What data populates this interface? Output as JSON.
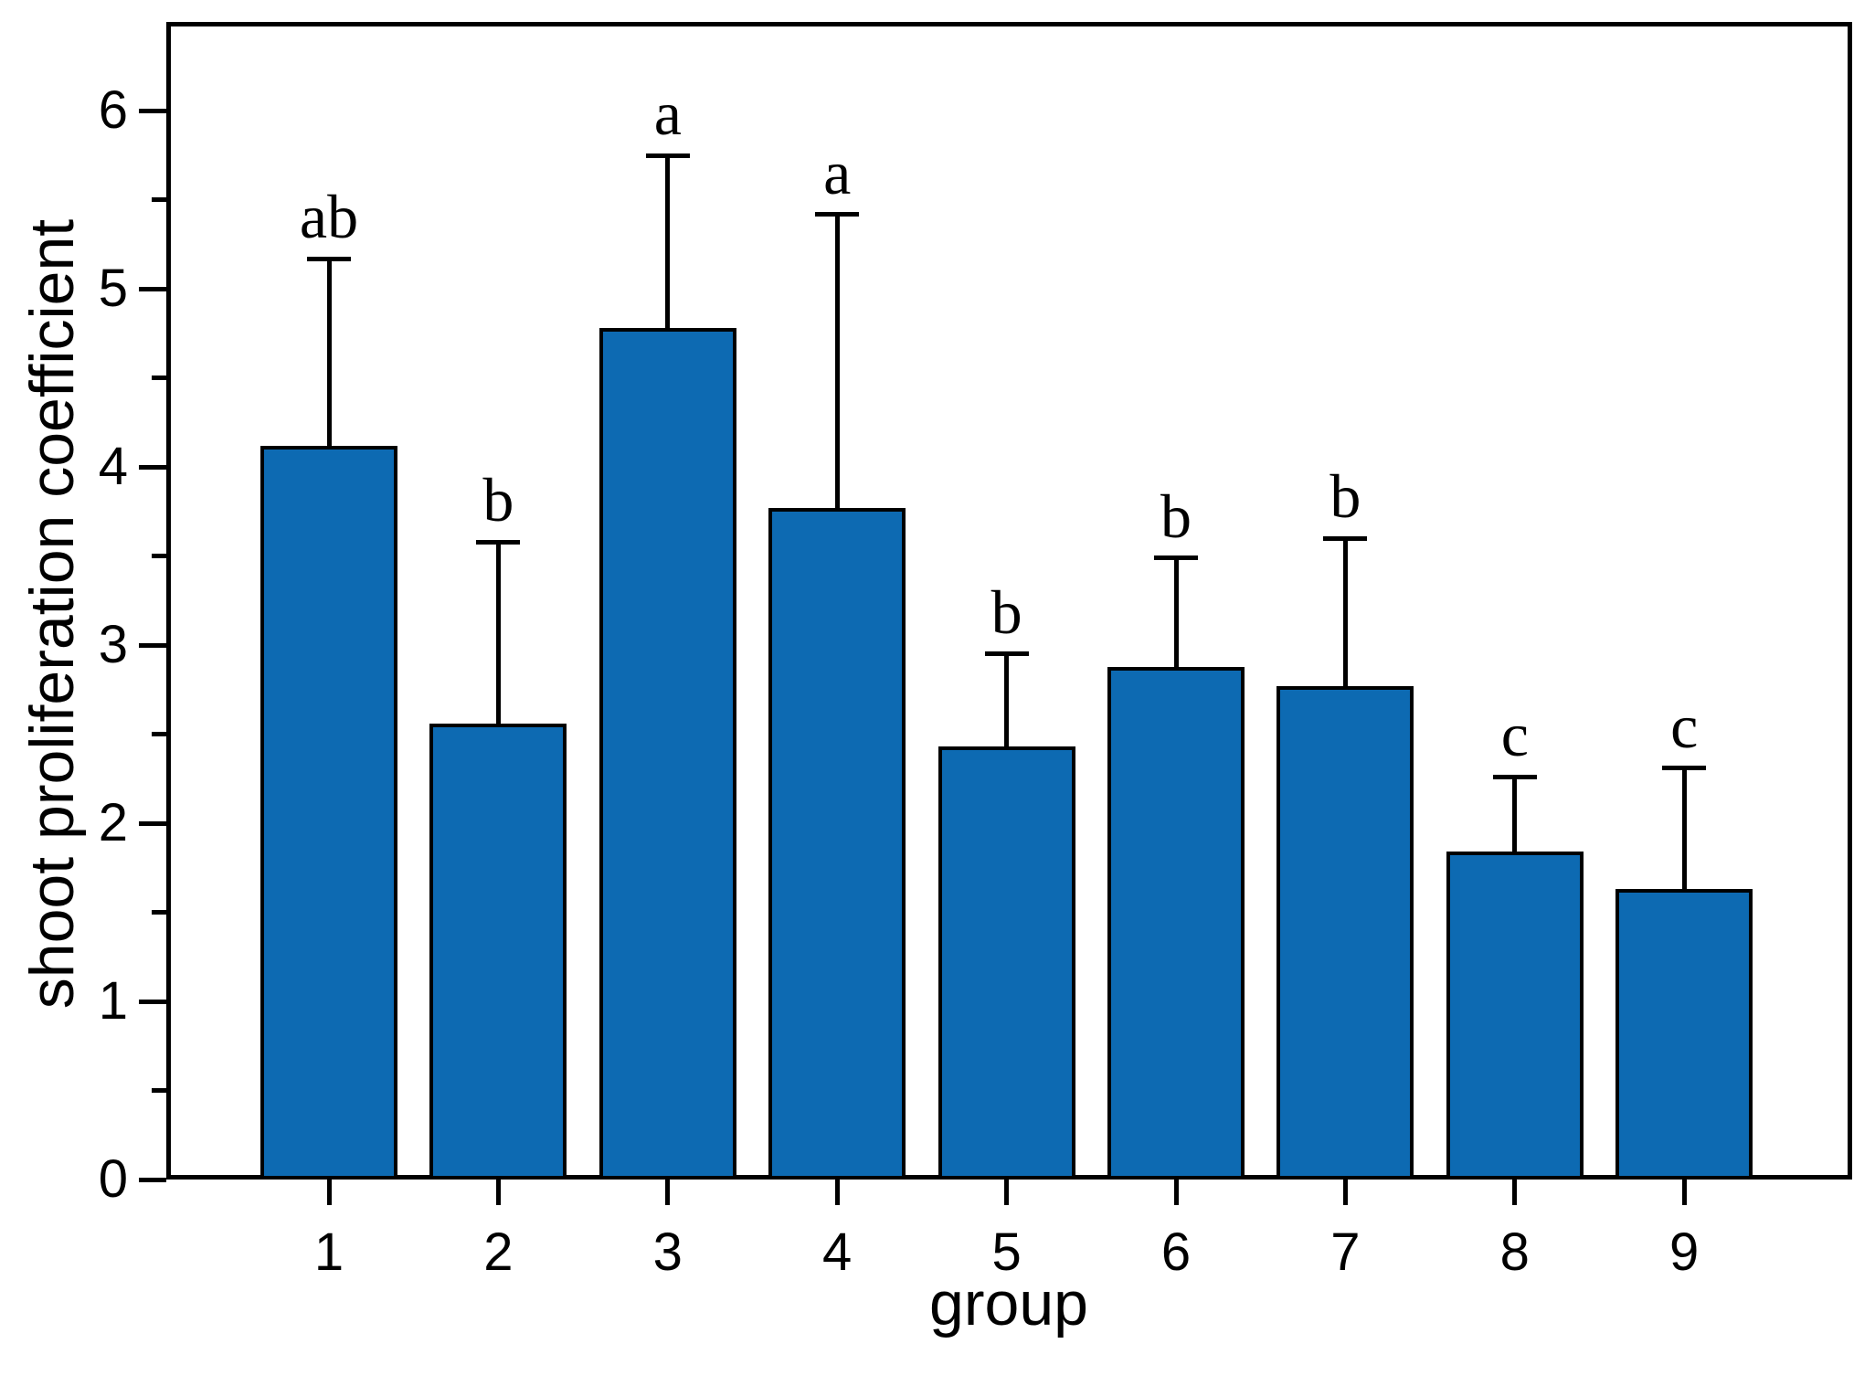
{
  "chart_data": {
    "type": "bar",
    "title": "",
    "xlabel": "group",
    "ylabel": "shoot proliferation coefficient",
    "categories": [
      "1",
      "2",
      "3",
      "4",
      "5",
      "6",
      "7",
      "8",
      "9"
    ],
    "series": [
      {
        "name": "shoot proliferation coefficient",
        "values": [
          4.12,
          2.56,
          4.78,
          3.77,
          2.43,
          2.88,
          2.77,
          1.84,
          1.63
        ],
        "error_up": [
          1.05,
          1.02,
          0.97,
          1.65,
          0.52,
          0.61,
          0.83,
          0.42,
          0.68
        ],
        "significance_letters": [
          "ab",
          "b",
          "a",
          "a",
          "b",
          "b",
          "b",
          "c",
          "c"
        ]
      }
    ],
    "ylim": [
      0,
      6.5
    ],
    "ytick_labels": [
      "0",
      "1",
      "2",
      "3",
      "4",
      "5",
      "6"
    ],
    "ytick_major_step": 1,
    "ytick_minor_step": 0.5,
    "grid": "off",
    "legend": "none",
    "bar_color": "#0d6ab2",
    "bar_edge_color": "#000000",
    "errorbar_color": "#000000",
    "axis_color": "#000000",
    "background_color": "#ffffff"
  }
}
